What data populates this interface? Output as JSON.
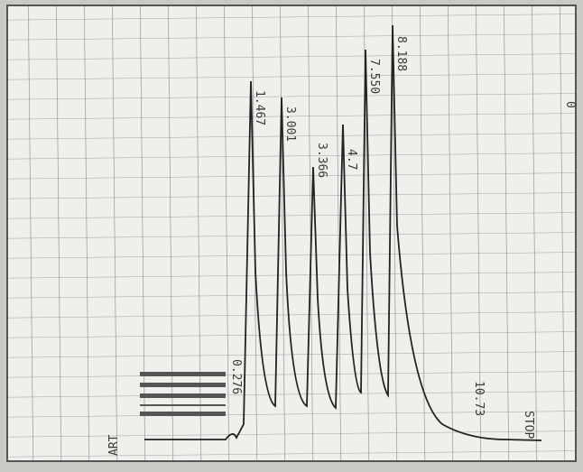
{
  "labels": {
    "start": "ART",
    "marker": "0.276",
    "peaks": [
      "1.467",
      "3.001",
      "3.366",
      "4.7",
      "7.550",
      "8.188"
    ],
    "end_time": "10.73",
    "stop": "STOP",
    "side": "0"
  }
}
